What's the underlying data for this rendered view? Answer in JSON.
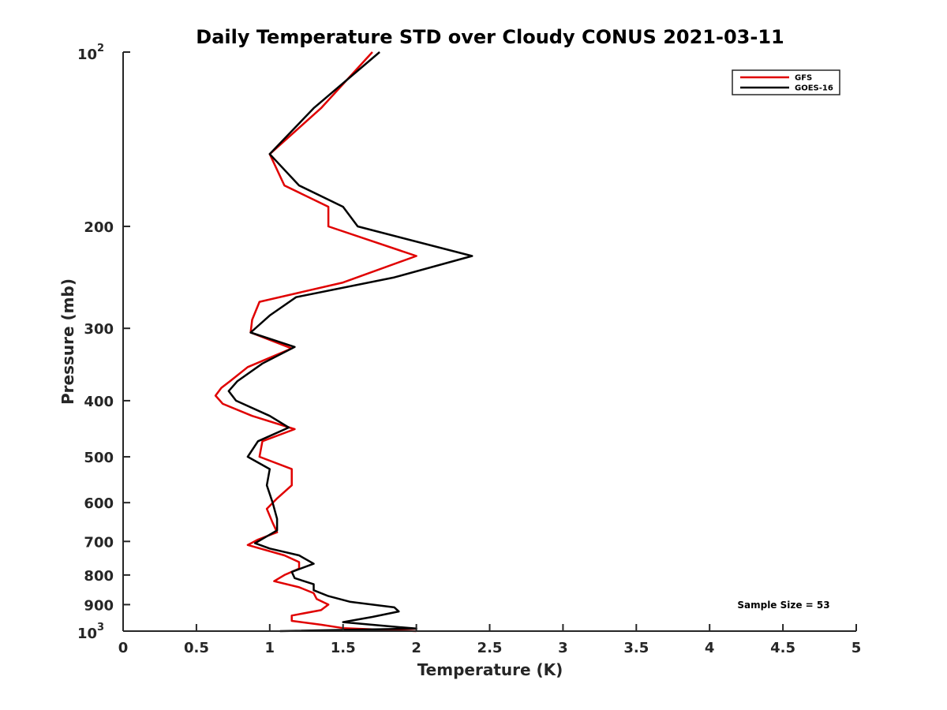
{
  "chart_data": {
    "type": "line",
    "title": "Daily Temperature STD over Cloudy CONUS 2021-03-11",
    "xlabel": "Temperature (K)",
    "ylabel": "Pressure (mb)",
    "xlim": [
      0,
      5
    ],
    "ylim": [
      100,
      1000
    ],
    "y_scale": "log",
    "y_reversed": true,
    "grid": false,
    "legend_position": "top-right",
    "x_ticks": [
      "0",
      "0.5",
      "1",
      "1.5",
      "2",
      "2.5",
      "3",
      "3.5",
      "4",
      "4.5",
      "5"
    ],
    "y_ticks": [
      {
        "value": 100,
        "base": "10",
        "exp": "2"
      },
      {
        "value": 200,
        "label": "200"
      },
      {
        "value": 300,
        "label": "300"
      },
      {
        "value": 400,
        "label": "400"
      },
      {
        "value": 500,
        "label": "500"
      },
      {
        "value": 600,
        "label": "600"
      },
      {
        "value": 700,
        "label": "700"
      },
      {
        "value": 800,
        "label": "800"
      },
      {
        "value": 900,
        "label": "900"
      },
      {
        "value": 1000,
        "base": "10",
        "exp": "3"
      }
    ],
    "annotation": "Sample Size = 53",
    "series": [
      {
        "name": "GFS",
        "color": "#e00000",
        "points": [
          [
            1.7,
            100
          ],
          [
            1.35,
            125
          ],
          [
            1.0,
            150
          ],
          [
            1.1,
            170
          ],
          [
            1.4,
            185
          ],
          [
            1.4,
            200
          ],
          [
            2.0,
            225
          ],
          [
            1.5,
            250
          ],
          [
            0.93,
            270
          ],
          [
            0.88,
            290
          ],
          [
            0.87,
            305
          ],
          [
            1.15,
            325
          ],
          [
            0.85,
            350
          ],
          [
            0.73,
            370
          ],
          [
            0.67,
            380
          ],
          [
            0.63,
            392
          ],
          [
            0.68,
            405
          ],
          [
            0.88,
            425
          ],
          [
            1.17,
            448
          ],
          [
            0.95,
            470
          ],
          [
            0.93,
            500
          ],
          [
            1.15,
            525
          ],
          [
            1.15,
            560
          ],
          [
            1.05,
            590
          ],
          [
            0.98,
            615
          ],
          [
            1.02,
            650
          ],
          [
            1.05,
            675
          ],
          [
            0.92,
            695
          ],
          [
            0.85,
            710
          ],
          [
            1.1,
            740
          ],
          [
            1.2,
            760
          ],
          [
            1.2,
            780
          ],
          [
            1.1,
            800
          ],
          [
            1.03,
            820
          ],
          [
            1.2,
            840
          ],
          [
            1.3,
            860
          ],
          [
            1.32,
            880
          ],
          [
            1.4,
            900
          ],
          [
            1.35,
            920
          ],
          [
            1.15,
            940
          ],
          [
            1.15,
            960
          ],
          [
            1.35,
            975
          ],
          [
            1.5,
            988
          ],
          [
            2.0,
            1000
          ]
        ]
      },
      {
        "name": "GOES-16",
        "color": "#000000",
        "points": [
          [
            1.75,
            100
          ],
          [
            1.3,
            125
          ],
          [
            1.0,
            150
          ],
          [
            1.2,
            170
          ],
          [
            1.5,
            185
          ],
          [
            1.6,
            200
          ],
          [
            2.38,
            225
          ],
          [
            1.85,
            245
          ],
          [
            1.18,
            265
          ],
          [
            1.0,
            285
          ],
          [
            0.87,
            305
          ],
          [
            1.17,
            323
          ],
          [
            0.95,
            345
          ],
          [
            0.78,
            370
          ],
          [
            0.72,
            385
          ],
          [
            0.77,
            400
          ],
          [
            1.0,
            425
          ],
          [
            1.13,
            445
          ],
          [
            0.92,
            470
          ],
          [
            0.85,
            500
          ],
          [
            1.0,
            525
          ],
          [
            0.98,
            560
          ],
          [
            1.02,
            600
          ],
          [
            1.05,
            640
          ],
          [
            1.05,
            670
          ],
          [
            0.9,
            705
          ],
          [
            1.0,
            720
          ],
          [
            1.2,
            740
          ],
          [
            1.3,
            765
          ],
          [
            1.15,
            790
          ],
          [
            1.17,
            810
          ],
          [
            1.3,
            830
          ],
          [
            1.3,
            850
          ],
          [
            1.4,
            870
          ],
          [
            1.55,
            890
          ],
          [
            1.85,
            910
          ],
          [
            1.88,
            925
          ],
          [
            1.7,
            945
          ],
          [
            1.5,
            965
          ],
          [
            1.8,
            980
          ],
          [
            2.0,
            990
          ],
          [
            1.07,
            1000
          ]
        ]
      }
    ]
  }
}
